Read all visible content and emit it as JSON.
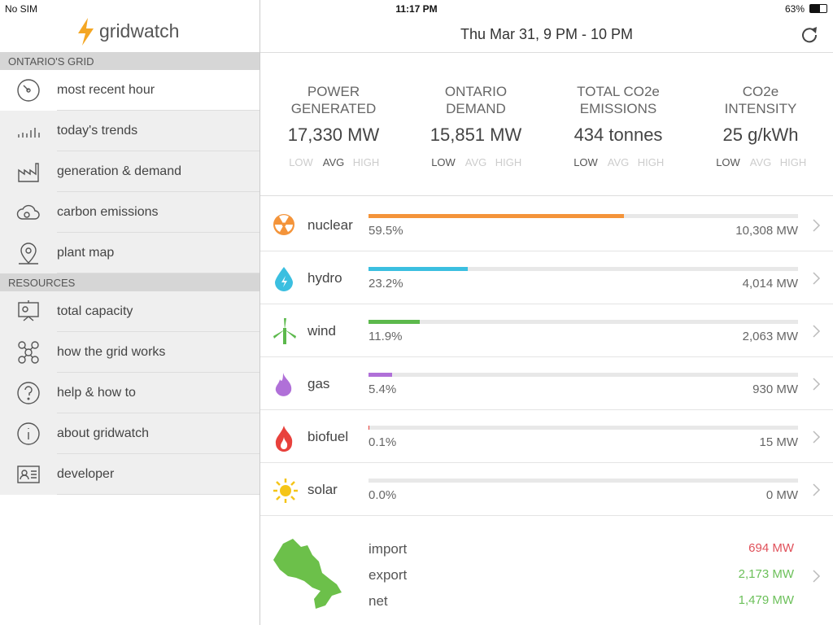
{
  "status_bar": {
    "carrier": "No SIM",
    "time": "11:17 PM",
    "battery": "63%"
  },
  "app_name": "gridwatch",
  "sidebar": {
    "sections": [
      {
        "title": "ONTARIO'S GRID",
        "selected": 0,
        "items": [
          "most recent hour",
          "today's trends",
          "generation & demand",
          "carbon emissions",
          "plant map"
        ]
      },
      {
        "title": "RESOURCES",
        "items": [
          "total capacity",
          "how the grid works",
          "help & how to",
          "about gridwatch",
          "developer"
        ]
      }
    ]
  },
  "header": {
    "period": "Thu Mar 31, 9 PM - 10 PM"
  },
  "summary": [
    {
      "label": "POWER GENERATED",
      "value": "17,330 MW",
      "levels": [
        "LOW",
        "AVG",
        "HIGH"
      ],
      "active": 1
    },
    {
      "label": "ONTARIO DEMAND",
      "value": "15,851 MW",
      "levels": [
        "LOW",
        "AVG",
        "HIGH"
      ],
      "active": 0
    },
    {
      "label": "TOTAL CO2e EMISSIONS",
      "value": "434 tonnes",
      "levels": [
        "LOW",
        "AVG",
        "HIGH"
      ],
      "active": 0
    },
    {
      "label": "CO2e INTENSITY",
      "value": "25 g/kWh",
      "levels": [
        "LOW",
        "AVG",
        "HIGH"
      ],
      "active": 0
    }
  ],
  "sources": {
    "xlim": [
      0,
      100
    ],
    "items": [
      {
        "name": "nuclear",
        "share": 59.5,
        "share_label": "59.5%",
        "output": "10,308 MW",
        "color": "#f4943a"
      },
      {
        "name": "hydro",
        "share": 23.2,
        "share_label": "23.2%",
        "output": "4,014 MW",
        "color": "#3bbfe0"
      },
      {
        "name": "wind",
        "share": 11.9,
        "share_label": "11.9%",
        "output": "2,063 MW",
        "color": "#5cb94c"
      },
      {
        "name": "gas",
        "share": 5.4,
        "share_label": "5.4%",
        "output": "930 MW",
        "color": "#b070d8"
      },
      {
        "name": "biofuel",
        "share": 0.1,
        "share_label": "0.1%",
        "output": "15 MW",
        "color": "#e8413c"
      },
      {
        "name": "solar",
        "share": 0.0,
        "share_label": "0.0%",
        "output": "0 MW",
        "color": "#f5c518"
      }
    ]
  },
  "trade": [
    {
      "label": "import",
      "value": "694 MW",
      "color": "#e0505a"
    },
    {
      "label": "export",
      "value": "2,173 MW",
      "color": "#6cc05a"
    },
    {
      "label": "net",
      "value": "1,479 MW",
      "color": "#6cc05a"
    }
  ]
}
